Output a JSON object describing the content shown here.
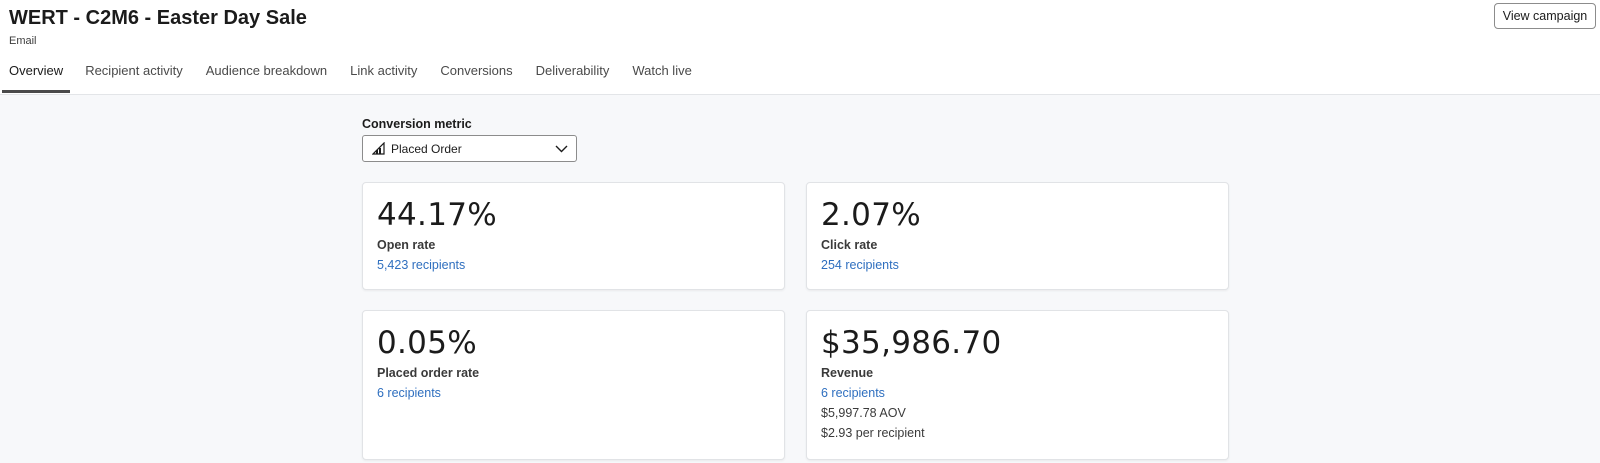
{
  "page": {
    "title": "WERT - C2M6 - Easter Day Sale",
    "subtitle": "Email",
    "view_campaign_label": "View campaign"
  },
  "tabs": [
    {
      "label": "Overview",
      "active": true
    },
    {
      "label": "Recipient activity",
      "active": false
    },
    {
      "label": "Audience breakdown",
      "active": false
    },
    {
      "label": "Link activity",
      "active": false
    },
    {
      "label": "Conversions",
      "active": false
    },
    {
      "label": "Deliverability",
      "active": false
    },
    {
      "label": "Watch live",
      "active": false
    }
  ],
  "conversion_metric": {
    "label": "Conversion metric",
    "selected": "Placed Order",
    "icon": "metric-chart-icon"
  },
  "cards": {
    "open_rate": {
      "value": "44.17%",
      "label": "Open rate",
      "link": "5,423 recipients"
    },
    "click_rate": {
      "value": "2.07%",
      "label": "Click rate",
      "link": "254 recipients"
    },
    "placed_order_rate": {
      "value": "0.05%",
      "label": "Placed order rate",
      "link": "6 recipients"
    },
    "revenue": {
      "value": "$35,986.70",
      "label": "Revenue",
      "link": "6 recipients",
      "aov": "$5,997.78 AOV",
      "per_recipient": "$2.93 per recipient"
    }
  },
  "colors": {
    "link": "#2f6fbf",
    "background": "#f7f8fa",
    "card": "#ffffff",
    "active_tab_underline": "#4a4a4a"
  }
}
